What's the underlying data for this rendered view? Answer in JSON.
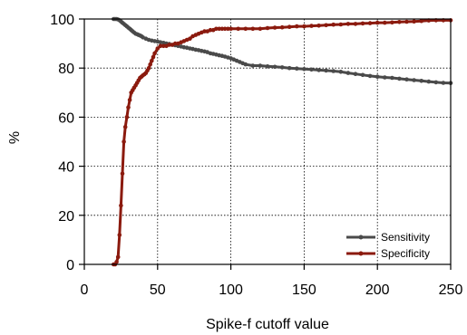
{
  "chart_data": {
    "type": "line",
    "title": "",
    "xlabel": "Spike-f cutoff value",
    "ylabel": "%",
    "xlim": [
      0,
      250
    ],
    "ylim": [
      0,
      100
    ],
    "xticks": [
      0,
      50,
      100,
      150,
      200,
      250
    ],
    "yticks": [
      0,
      20,
      40,
      60,
      80,
      100
    ],
    "grid": true,
    "legend": "bottom-right",
    "series": [
      {
        "name": "Sensitivity",
        "color": "#4a4a4a",
        "x": [
          20,
          21,
          22,
          23,
          24,
          25,
          26,
          27,
          28,
          29,
          30,
          31,
          32,
          33,
          34,
          35,
          36,
          37,
          38,
          39,
          40,
          42,
          44,
          46,
          48,
          50,
          52,
          54,
          56,
          58,
          60,
          62,
          64,
          66,
          68,
          70,
          72,
          74,
          76,
          78,
          80,
          82,
          84,
          86,
          88,
          90,
          92,
          94,
          96,
          98,
          100,
          102,
          104,
          106,
          108,
          110,
          115,
          120,
          125,
          130,
          135,
          140,
          145,
          150,
          155,
          160,
          165,
          170,
          175,
          180,
          185,
          190,
          195,
          200,
          205,
          210,
          215,
          220,
          225,
          230,
          235,
          240,
          245,
          250
        ],
        "values": [
          100,
          100,
          100,
          99.8,
          99.5,
          99,
          98.5,
          98,
          97.5,
          97,
          96.5,
          96,
          95.5,
          95,
          94.5,
          94,
          93.8,
          93.5,
          93.3,
          93,
          92.5,
          92,
          91.5,
          91.2,
          91,
          90.8,
          90.5,
          90.3,
          90,
          89.8,
          89.5,
          89.3,
          89,
          88.8,
          88.5,
          88.3,
          88,
          87.8,
          87.5,
          87.3,
          87,
          86.8,
          86.5,
          86,
          85.8,
          85.5,
          85.2,
          85,
          84.7,
          84.3,
          84,
          83.5,
          83,
          82.5,
          82,
          81.5,
          81,
          81,
          80.7,
          80.5,
          80.3,
          80,
          79.8,
          79.6,
          79.4,
          79.2,
          79,
          78.8,
          78.5,
          78,
          77.6,
          77.2,
          76.8,
          76.5,
          76.2,
          76,
          75.7,
          75.4,
          75.1,
          74.8,
          74.5,
          74.2,
          74,
          73.9
        ]
      },
      {
        "name": "Specificity",
        "color": "#8b1a0e",
        "x": [
          20,
          21,
          22,
          23,
          24,
          25,
          26,
          27,
          28,
          29,
          30,
          31,
          32,
          33,
          34,
          35,
          36,
          37,
          38,
          39,
          40,
          41,
          42,
          43,
          44,
          45,
          46,
          47,
          48,
          50,
          52,
          54,
          56,
          58,
          60,
          62,
          64,
          66,
          68,
          70,
          72,
          74,
          76,
          78,
          80,
          82,
          84,
          86,
          88,
          90,
          92,
          94,
          96,
          98,
          100,
          105,
          110,
          115,
          120,
          125,
          130,
          135,
          140,
          145,
          150,
          155,
          160,
          165,
          170,
          175,
          180,
          185,
          190,
          195,
          200,
          205,
          210,
          215,
          220,
          225,
          230,
          235,
          240,
          245,
          250
        ],
        "values": [
          0,
          0,
          1,
          3,
          12,
          24,
          37,
          50,
          56,
          60,
          64,
          67,
          70,
          71,
          72,
          73,
          74,
          75,
          76,
          76.5,
          77,
          77.5,
          78,
          79,
          80,
          81.5,
          83,
          84.5,
          86,
          88,
          89,
          89,
          89,
          89.5,
          89.5,
          90,
          90,
          90.5,
          91,
          91.5,
          92,
          93,
          93.5,
          94,
          94.5,
          95,
          95,
          95.5,
          95.5,
          96,
          96,
          96,
          96,
          96,
          96,
          96,
          96,
          96,
          96,
          96.3,
          96.5,
          96.6,
          96.8,
          97,
          97,
          97.2,
          97.3,
          97.5,
          97.7,
          97.8,
          98,
          98,
          98.2,
          98.3,
          98.5,
          98.5,
          98.6,
          98.8,
          98.9,
          99,
          99.2,
          99.4,
          99.5,
          99.5,
          99.5
        ]
      }
    ]
  }
}
